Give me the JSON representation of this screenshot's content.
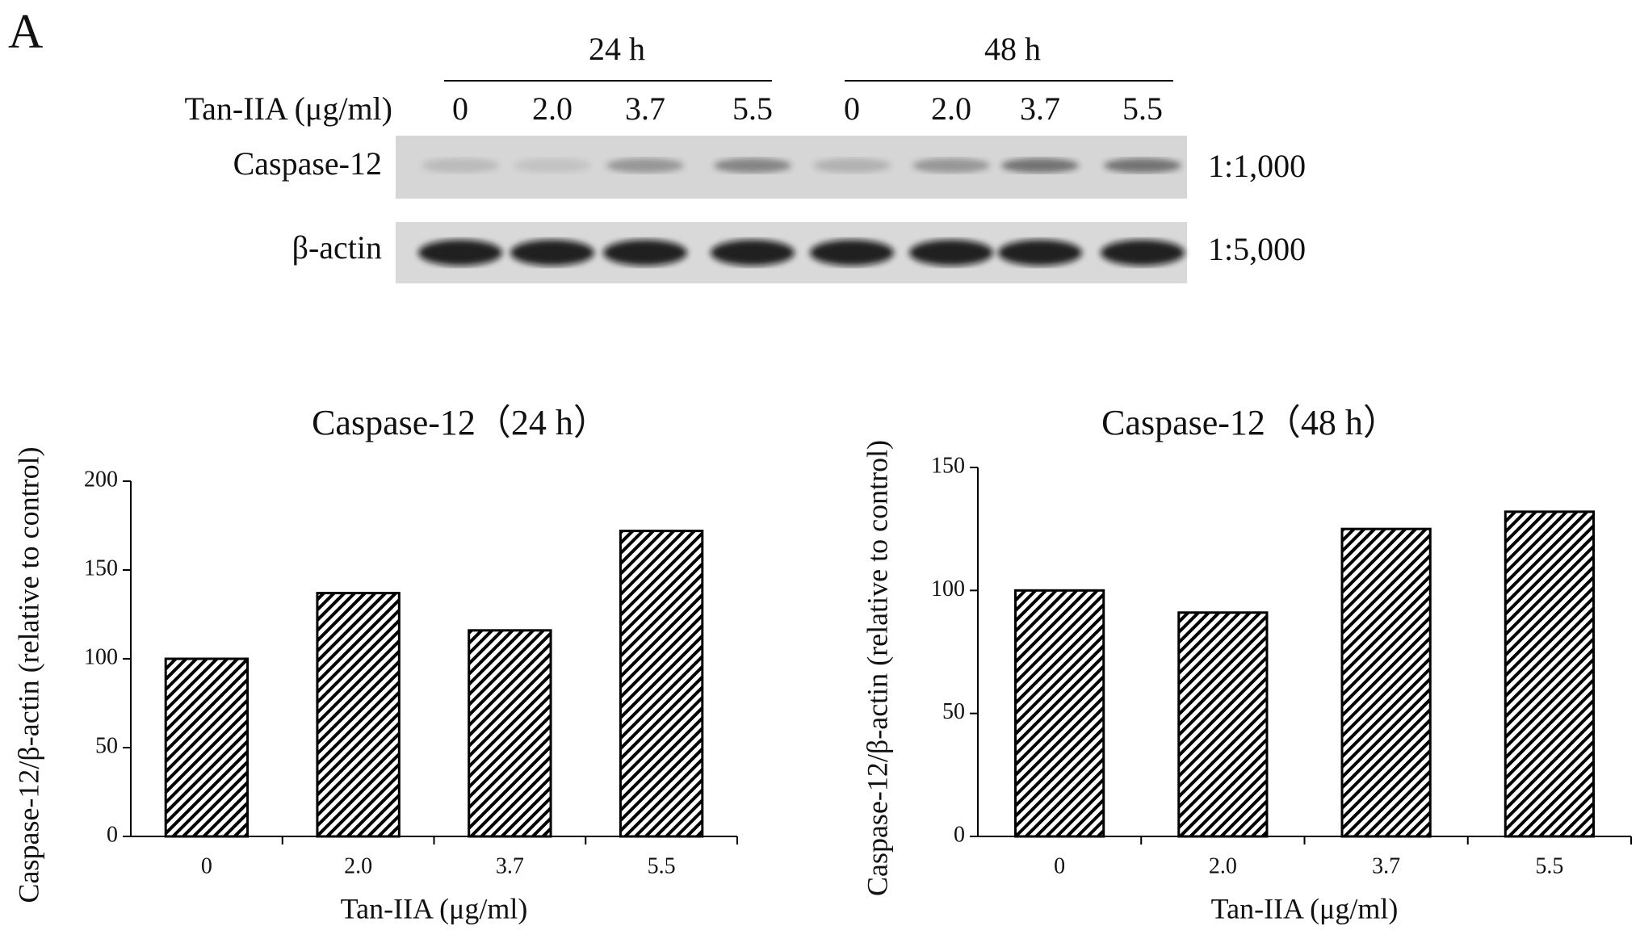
{
  "panel_label": "A",
  "blot": {
    "time_labels": [
      "24 h",
      "48 h"
    ],
    "treatment_label": "Tan-IIA (μg/ml)",
    "lanes": [
      "0",
      "2.0",
      "3.7",
      "5.5",
      "0",
      "2.0",
      "3.7",
      "5.5"
    ],
    "rows": [
      {
        "label": "Caspase-12",
        "dilution": "1:1,000"
      },
      {
        "label": "β-actin",
        "dilution": "1:5,000"
      }
    ]
  },
  "chart_data": [
    {
      "type": "bar",
      "title": "Caspase-12（24 h）",
      "x_label": "Tan-IIA (μg/ml)",
      "y_label": "Caspase-12/β-actin (relative to control)",
      "categories": [
        "0",
        "2.0",
        "3.7",
        "5.5"
      ],
      "values": [
        100,
        137,
        116,
        172
      ],
      "color": "#000000",
      "ylim": [
        0,
        200
      ],
      "yticks": [
        0,
        50,
        100,
        150,
        200
      ]
    },
    {
      "type": "bar",
      "title": "Caspase-12（48 h）",
      "x_label": "Tan-IIA (μg/ml)",
      "y_label": "Caspase-12/β-actin (relative to control)",
      "categories": [
        "0",
        "2.0",
        "3.7",
        "5.5"
      ],
      "values": [
        100,
        91,
        125,
        132
      ],
      "color": "#000000",
      "ylim": [
        0,
        150
      ],
      "yticks": [
        0,
        50,
        100,
        150
      ]
    }
  ]
}
